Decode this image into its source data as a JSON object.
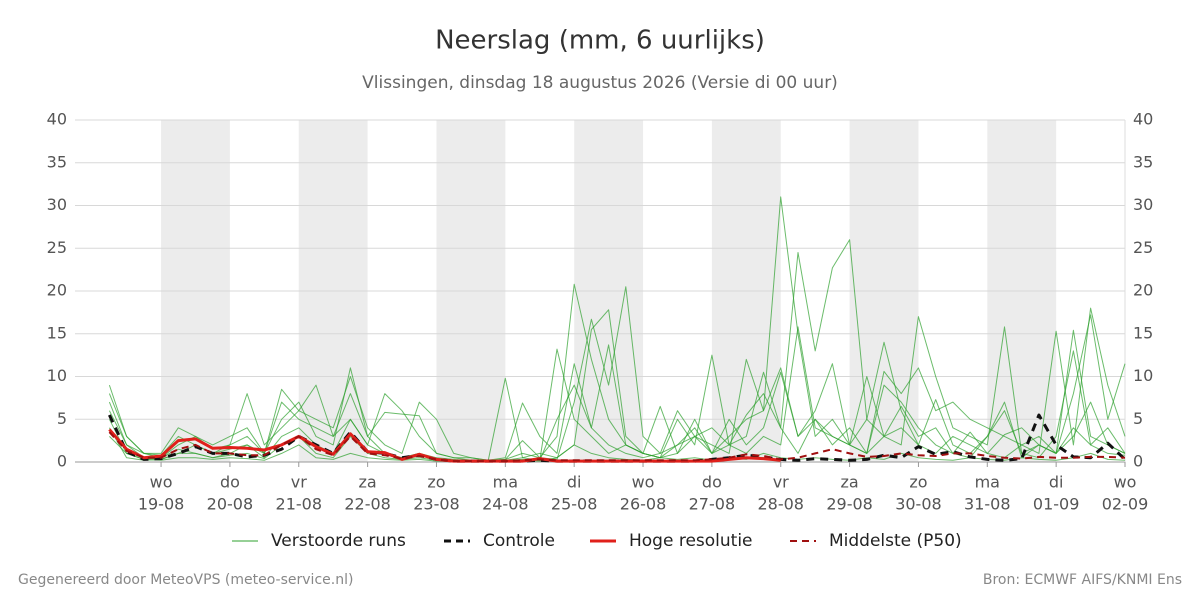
{
  "chart_data": {
    "type": "line",
    "title": "Neerslag (mm, 6 uurlijks)",
    "subtitle": "Vlissingen, dinsdag 18 augustus 2026 (Versie di 00 uur)",
    "footer_left": "Gegenereerd door MeteoVPS (meteo-service.nl)",
    "footer_right": "Bron: ECMWF AIFS/KNMI Ens",
    "x": [
      "2026-08-18T06",
      "2026-08-18T12",
      "2026-08-18T18",
      "2026-08-19T00",
      "2026-08-19T06",
      "2026-08-19T12",
      "2026-08-19T18",
      "2026-08-20T00",
      "2026-08-20T06",
      "2026-08-20T12",
      "2026-08-20T18",
      "2026-08-21T00",
      "2026-08-21T06",
      "2026-08-21T12",
      "2026-08-21T18",
      "2026-08-22T00",
      "2026-08-22T06",
      "2026-08-22T12",
      "2026-08-22T18",
      "2026-08-23T00",
      "2026-08-23T06",
      "2026-08-23T12",
      "2026-08-23T18",
      "2026-08-24T00",
      "2026-08-24T06",
      "2026-08-24T12",
      "2026-08-24T18",
      "2026-08-25T00",
      "2026-08-25T06",
      "2026-08-25T12",
      "2026-08-25T18",
      "2026-08-26T00",
      "2026-08-26T06",
      "2026-08-26T12",
      "2026-08-26T18",
      "2026-08-27T00",
      "2026-08-27T06",
      "2026-08-27T12",
      "2026-08-27T18",
      "2026-08-28T00",
      "2026-08-28T06",
      "2026-08-28T12",
      "2026-08-28T18",
      "2026-08-29T00",
      "2026-08-29T06",
      "2026-08-29T12",
      "2026-08-29T18",
      "2026-08-30T00",
      "2026-08-30T06",
      "2026-08-30T12",
      "2026-08-30T18",
      "2026-08-31T00",
      "2026-08-31T06",
      "2026-08-31T12",
      "2026-08-31T18",
      "2026-09-01T00",
      "2026-09-01T06",
      "2026-09-01T12",
      "2026-09-01T18",
      "2026-09-02T00"
    ],
    "xlim": [
      "2026-08-17T18",
      "2026-09-02T00"
    ],
    "xticks": [
      {
        "value": "2026-08-19T00",
        "day": "wo",
        "label": "19-08"
      },
      {
        "value": "2026-08-20T00",
        "day": "do",
        "label": "20-08"
      },
      {
        "value": "2026-08-21T00",
        "day": "vr",
        "label": "21-08"
      },
      {
        "value": "2026-08-22T00",
        "day": "za",
        "label": "22-08"
      },
      {
        "value": "2026-08-23T00",
        "day": "zo",
        "label": "23-08"
      },
      {
        "value": "2026-08-24T00",
        "day": "ma",
        "label": "24-08"
      },
      {
        "value": "2026-08-25T00",
        "day": "di",
        "label": "25-08"
      },
      {
        "value": "2026-08-26T00",
        "day": "wo",
        "label": "26-08"
      },
      {
        "value": "2026-08-27T00",
        "day": "do",
        "label": "27-08"
      },
      {
        "value": "2026-08-28T00",
        "day": "vr",
        "label": "28-08"
      },
      {
        "value": "2026-08-29T00",
        "day": "za",
        "label": "29-08"
      },
      {
        "value": "2026-08-30T00",
        "day": "zo",
        "label": "30-08"
      },
      {
        "value": "2026-08-31T00",
        "day": "ma",
        "label": "31-08"
      },
      {
        "value": "2026-09-01T00",
        "day": "di",
        "label": "01-09"
      },
      {
        "value": "2026-09-02T00",
        "day": "wo",
        "label": "02-09"
      }
    ],
    "ylim": [
      0,
      40
    ],
    "yticks": [
      0,
      5,
      10,
      15,
      20,
      25,
      30,
      35,
      40
    ],
    "grid": true,
    "ensemble": {
      "name": "Verstoorde runs",
      "color": "#2ca02c",
      "runs": [
        [
          9,
          3,
          1,
          0.5,
          2,
          3,
          1.5,
          2,
          8,
          2,
          4,
          6,
          9,
          3,
          5,
          2,
          8,
          6,
          3,
          1,
          0.5,
          0.2,
          0.1,
          0.3,
          1,
          0.5,
          3,
          20.8,
          12,
          5,
          2,
          1,
          0.5,
          2,
          4,
          1,
          3,
          5,
          6,
          31,
          15,
          3,
          5,
          2,
          10,
          3,
          4,
          2,
          1,
          3,
          2,
          1,
          0.5,
          2,
          3,
          1,
          4,
          2,
          1,
          0.8
        ],
        [
          6,
          2,
          0.5,
          0.3,
          1,
          2,
          1,
          1.5,
          2,
          1,
          5,
          7,
          3,
          2,
          11,
          3,
          1,
          0.5,
          1,
          0.5,
          0.3,
          0.1,
          0.1,
          0.2,
          0.5,
          1,
          0.5,
          2,
          15.5,
          17.8,
          3,
          1,
          0.5,
          5,
          2,
          12.5,
          2,
          3,
          10.5,
          4,
          24.5,
          13,
          22.7,
          26,
          5,
          3,
          2,
          17,
          10,
          4,
          3,
          2,
          15.8,
          1,
          0.5,
          3,
          13,
          2,
          4,
          1
        ],
        [
          7,
          2,
          1,
          0.8,
          3,
          2,
          1,
          2,
          3,
          1,
          8.5,
          6,
          5,
          4,
          10,
          4,
          2,
          1,
          7,
          5,
          1,
          0.5,
          0.2,
          0.3,
          2.5,
          0.5,
          0.3,
          7,
          16.7,
          9,
          20.5,
          3,
          1,
          6,
          3,
          2,
          1,
          12,
          6,
          11,
          3,
          5,
          2,
          4,
          1,
          10.6,
          8,
          11,
          6,
          7,
          5,
          4,
          3,
          2,
          1,
          15.3,
          2,
          18,
          9,
          3
        ],
        [
          5,
          1,
          0.3,
          0.5,
          1.5,
          1,
          0.5,
          1,
          2,
          0.5,
          3,
          4,
          2,
          1,
          5,
          2,
          1,
          0.5,
          1,
          0.3,
          0.2,
          0.1,
          0.1,
          9.8,
          0.5,
          0.2,
          13.2,
          5,
          3,
          1,
          2,
          1,
          6.5,
          1,
          5,
          1,
          2,
          1,
          3,
          2,
          15.8,
          4,
          3,
          2,
          5,
          14,
          6,
          2,
          7.3,
          2,
          1,
          3,
          6,
          1,
          2,
          1,
          8,
          17.2,
          5,
          11.5
        ],
        [
          4,
          0.5,
          0.2,
          0.3,
          1,
          1,
          0.5,
          0.8,
          1,
          0.4,
          2,
          3,
          1,
          0.5,
          3,
          1,
          0.5,
          0.3,
          0.5,
          0.2,
          0.1,
          0.1,
          0.1,
          0.2,
          0.3,
          0.2,
          5,
          9,
          4,
          2,
          1,
          0.5,
          1,
          2,
          3,
          1,
          5,
          2,
          4,
          10.5,
          3,
          6,
          11.5,
          2,
          1,
          3,
          6.5,
          3,
          4,
          1,
          3.5,
          1,
          3.2,
          4,
          2,
          1,
          3,
          7,
          2,
          1
        ],
        [
          8,
          3,
          1,
          1,
          4,
          3,
          2,
          3,
          4,
          1,
          7,
          5,
          4,
          3,
          8,
          3,
          5.8,
          5.6,
          5.4,
          1,
          0.5,
          0.5,
          0.2,
          0.5,
          6.9,
          3,
          1,
          11.5,
          4,
          13.7,
          2,
          1,
          0.5,
          1,
          3,
          4,
          2,
          5.5,
          8,
          4,
          1,
          5,
          3,
          2,
          1,
          9,
          7,
          4,
          2,
          1,
          0.5,
          3,
          7,
          0.5,
          2,
          1,
          15.4,
          3,
          2,
          1
        ],
        [
          3,
          1,
          0.3,
          0.2,
          0.5,
          0.5,
          0.3,
          0.5,
          0.4,
          0.2,
          1,
          2,
          0.5,
          0.3,
          1,
          0.5,
          0.3,
          0.2,
          0.3,
          0.1,
          0.1,
          0.1,
          0.1,
          0.1,
          0.2,
          0.1,
          0.5,
          2,
          1,
          0.5,
          0.3,
          0.2,
          0.5,
          0.3,
          0.5,
          0.2,
          0.5,
          0.3,
          1,
          0.5,
          0.3,
          0.5,
          0.3,
          0.2,
          0.5,
          0.3,
          1,
          0.5,
          0.3,
          0.2,
          0.5,
          0.3,
          0.2,
          0.5,
          0.3,
          0.2,
          0.5,
          1,
          0.3,
          0.2
        ]
      ]
    },
    "series": [
      {
        "name": "Controle",
        "color": "#111111",
        "dash": true,
        "values": [
          5.5,
          1.2,
          0.3,
          0.4,
          1,
          1.8,
          1,
          1,
          0.6,
          0.8,
          1.5,
          3,
          2,
          1,
          3.5,
          1.2,
          1,
          0.5,
          0.8,
          0.3,
          0.1,
          0.1,
          0.1,
          0.1,
          0.1,
          0.2,
          0.1,
          0.1,
          0.1,
          0.1,
          0.1,
          0.1,
          0.1,
          0.1,
          0.1,
          0.3,
          0.5,
          0.8,
          0.6,
          0.3,
          0.2,
          0.4,
          0.3,
          0.2,
          0.3,
          0.8,
          0.5,
          1.8,
          0.9,
          1.2,
          0.6,
          0.3,
          0.2,
          0.4,
          5.5,
          2,
          0.6,
          0.5,
          2.2,
          0.3
        ]
      },
      {
        "name": "Hoge resolutie",
        "color": "#e0201b",
        "dash": false,
        "values": [
          3.8,
          1.5,
          0.5,
          0.7,
          2.5,
          2.7,
          1.6,
          1.7,
          1.6,
          1.4,
          2,
          3,
          1.8,
          0.9,
          3.3,
          1.2,
          1.1,
          0.3,
          0.9,
          0.3,
          0.1,
          0.1,
          0.1,
          0.1,
          0.1,
          0.4,
          0.1,
          0.1,
          0.1,
          0.1,
          0.1,
          0.1,
          0.1,
          0.1,
          0.1,
          0.1,
          0.3,
          0.5,
          0.4,
          0.2,
          null,
          null,
          null,
          null,
          null,
          null,
          null,
          null,
          null,
          null,
          null,
          null,
          null,
          null,
          null,
          null,
          null,
          null,
          null,
          null
        ]
      },
      {
        "name": "Middelste (P50)",
        "color": "#a01010",
        "dash": true,
        "values": [
          3.5,
          1.3,
          0.5,
          0.5,
          1.5,
          2,
          1,
          1,
          0.8,
          0.8,
          2,
          3,
          1.5,
          0.8,
          3,
          1,
          0.8,
          0.4,
          0.7,
          0.3,
          0.1,
          0.1,
          0.1,
          0.1,
          0.2,
          0.3,
          0.2,
          0.2,
          0.2,
          0.2,
          0.2,
          0.2,
          0.2,
          0.2,
          0.2,
          0.3,
          0.5,
          0.9,
          0.7,
          0.3,
          0.5,
          1,
          1.5,
          1,
          0.6,
          0.7,
          1,
          0.8,
          0.7,
          1,
          1,
          0.7,
          0.5,
          0.4,
          0.6,
          0.5,
          0.5,
          0.6,
          0.6,
          0.5
        ]
      }
    ]
  }
}
